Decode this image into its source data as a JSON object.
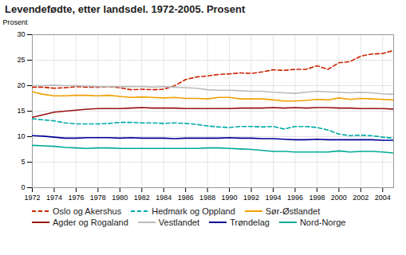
{
  "chart_data": {
    "type": "line",
    "title": "Levendefødte, etter landsdel. 1972-2005. Prosent",
    "ylabel": "Prosent",
    "x": [
      1972,
      1973,
      1974,
      1975,
      1976,
      1977,
      1978,
      1979,
      1980,
      1981,
      1982,
      1983,
      1984,
      1985,
      1986,
      1987,
      1988,
      1989,
      1990,
      1991,
      1992,
      1993,
      1994,
      1995,
      1996,
      1997,
      1998,
      1999,
      2000,
      2001,
      2002,
      2003,
      2004,
      2005
    ],
    "xlim": [
      1972,
      2005
    ],
    "xticks": [
      1972,
      1974,
      1976,
      1978,
      1980,
      1982,
      1984,
      1986,
      1988,
      1990,
      1992,
      1994,
      1996,
      1998,
      2000,
      2002,
      2004
    ],
    "ylim": [
      0,
      30
    ],
    "yticks": [
      0,
      5,
      10,
      15,
      20,
      25,
      30
    ],
    "grid": true,
    "legend": "bottom",
    "series": [
      {
        "name": "Oslo og Akershus",
        "color": "#cc2200",
        "line_style": "dashed",
        "values": [
          19.7,
          19.7,
          19.5,
          19.6,
          19.8,
          19.7,
          19.7,
          19.8,
          19.6,
          19.2,
          19.3,
          19.2,
          19.3,
          20.0,
          21.2,
          21.7,
          21.9,
          22.2,
          22.3,
          22.5,
          22.4,
          22.7,
          23.1,
          23.0,
          23.2,
          23.2,
          23.9,
          23.2,
          24.5,
          24.7,
          25.8,
          26.2,
          26.3,
          26.9
        ]
      },
      {
        "name": "Hedmark og Oppland",
        "color": "#00aaaa",
        "line_style": "dashed",
        "values": [
          13.5,
          13.3,
          13.1,
          12.7,
          12.5,
          12.5,
          12.5,
          12.6,
          12.8,
          12.8,
          12.7,
          12.7,
          12.6,
          12.7,
          12.6,
          12.4,
          12.1,
          11.9,
          11.8,
          12.0,
          12.0,
          11.9,
          12.0,
          11.5,
          12.0,
          12.0,
          11.8,
          11.3,
          10.5,
          10.2,
          10.3,
          10.2,
          9.9,
          9.7
        ]
      },
      {
        "name": "Sør-Østlandet",
        "color": "#f0a000",
        "line_style": "solid",
        "values": [
          18.8,
          18.3,
          18.0,
          18.0,
          18.1,
          18.1,
          18.0,
          18.1,
          17.9,
          17.7,
          17.8,
          17.7,
          17.6,
          17.7,
          17.5,
          17.5,
          17.4,
          17.7,
          17.7,
          17.4,
          17.4,
          17.4,
          17.2,
          17.0,
          17.0,
          17.1,
          17.3,
          17.2,
          17.6,
          17.3,
          17.5,
          17.4,
          17.3,
          17.2
        ]
      },
      {
        "name": "Agder og Rogaland",
        "color": "#991111",
        "line_style": "solid",
        "values": [
          13.8,
          14.3,
          14.8,
          15.0,
          15.2,
          15.4,
          15.5,
          15.5,
          15.5,
          15.6,
          15.7,
          15.6,
          15.6,
          15.6,
          15.5,
          15.5,
          15.5,
          15.5,
          15.5,
          15.6,
          15.6,
          15.6,
          15.7,
          15.6,
          15.7,
          15.6,
          15.7,
          15.7,
          15.6,
          15.6,
          15.5,
          15.5,
          15.5,
          15.4
        ]
      },
      {
        "name": "Vestlandet",
        "color": "#bbbbbb",
        "line_style": "solid",
        "values": [
          20.0,
          20.0,
          20.1,
          20.0,
          20.0,
          19.9,
          19.8,
          19.8,
          19.8,
          19.8,
          19.8,
          19.7,
          19.8,
          19.7,
          19.6,
          19.5,
          19.2,
          19.1,
          19.1,
          19.0,
          18.9,
          18.9,
          18.7,
          18.6,
          18.5,
          18.7,
          18.9,
          18.8,
          18.7,
          18.6,
          18.7,
          18.6,
          18.4,
          18.3
        ]
      },
      {
        "name": "Trøndelag",
        "color": "#000099",
        "line_style": "solid",
        "values": [
          10.2,
          10.1,
          9.9,
          9.7,
          9.7,
          9.8,
          9.8,
          9.8,
          9.7,
          9.8,
          9.7,
          9.7,
          9.7,
          9.6,
          9.7,
          9.7,
          9.7,
          9.7,
          9.8,
          9.7,
          9.7,
          9.6,
          9.6,
          9.5,
          9.4,
          9.4,
          9.5,
          9.4,
          9.4,
          9.4,
          9.4,
          9.4,
          9.3,
          9.3
        ]
      },
      {
        "name": "Nord-Norge",
        "color": "#00aa99",
        "line_style": "solid",
        "values": [
          8.3,
          8.2,
          8.1,
          7.9,
          7.8,
          7.7,
          7.8,
          7.8,
          7.7,
          7.7,
          7.7,
          7.7,
          7.7,
          7.7,
          7.7,
          7.7,
          7.8,
          7.8,
          7.7,
          7.6,
          7.5,
          7.3,
          7.1,
          7.1,
          7.0,
          7.0,
          7.0,
          7.0,
          7.2,
          7.0,
          7.1,
          7.1,
          7.0,
          6.8
        ]
      }
    ]
  }
}
